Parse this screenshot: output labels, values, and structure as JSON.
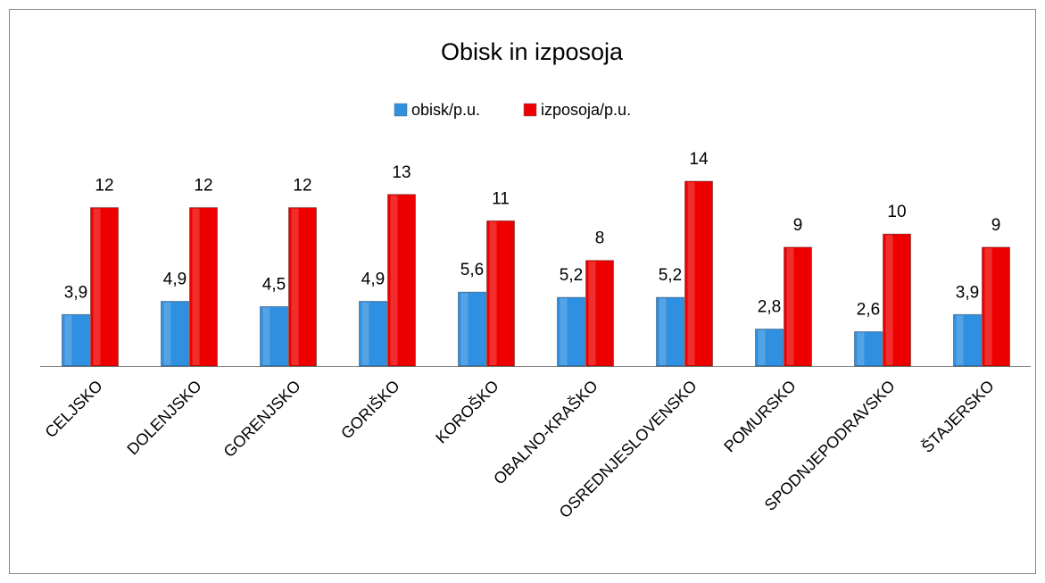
{
  "chart_data": {
    "type": "bar",
    "title": "Obisk in izposoja",
    "categories": [
      "CELJSKO",
      "DOLENJSKO",
      "GORENJSKO",
      "GORIŠKO",
      "KOROŠKO",
      "OBALNO-KRAŠKO",
      "OSREDNJESLOVENSKO",
      "POMURSKO",
      "SPODNJEPODRAVSKO",
      "ŠTAJERSKO"
    ],
    "series": [
      {
        "name": "obisk/p.u.",
        "color": "#2f8fe0",
        "values": [
          3.9,
          4.9,
          4.5,
          4.9,
          5.6,
          5.2,
          5.2,
          2.8,
          2.6,
          3.9
        ],
        "value_labels": [
          "3,9",
          "4,9",
          "4,5",
          "4,9",
          "5,6",
          "5,2",
          "5,2",
          "2,8",
          "2,6",
          "3,9"
        ]
      },
      {
        "name": "izposoja/p.u.",
        "color": "#ee0000",
        "values": [
          12,
          12,
          12,
          13,
          11,
          8,
          14,
          9,
          10,
          9
        ]
      }
    ],
    "legend": "top"
  }
}
